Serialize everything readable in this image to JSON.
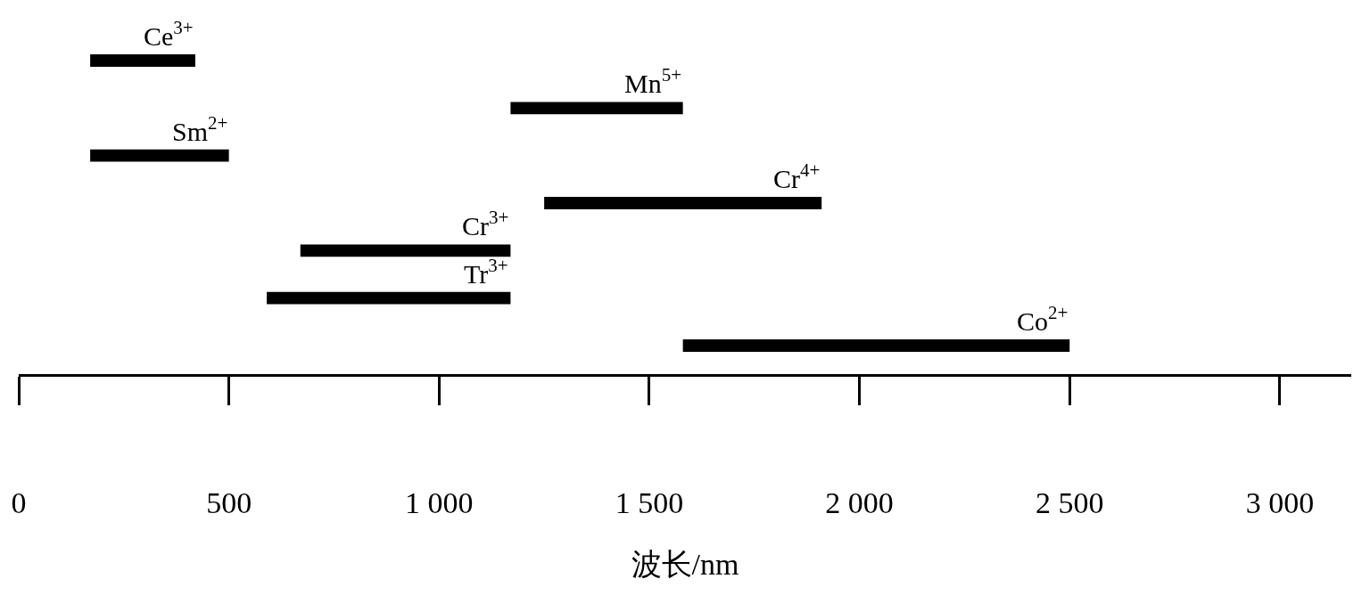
{
  "chart_data": {
    "type": "bar",
    "orientation": "horizontal",
    "xlabel": "波长/nm",
    "categories": [
      null,
      null,
      null,
      null,
      null,
      null,
      null
    ],
    "values": [
      250,
      410,
      330,
      660,
      500,
      580,
      920
    ],
    "base": [
      170,
      1170,
      170,
      1250,
      670,
      590,
      1580
    ],
    "color": "#000000",
    "annotations": [
      "Ce$^{3+}$",
      "Mn$^{5+}$",
      "Sm$^{2+}$",
      "Cr$^{4+}$",
      "Cr$^{3+}$",
      "Tr$^{3+}$",
      "Co$^{2+}$"
    ],
    "xlim": [
      0,
      3170
    ],
    "xticks": [
      0,
      500,
      {
        "value": 1000,
        "label": "1 000"
      },
      {
        "value": 1500,
        "label": "1 500"
      },
      {
        "value": 2000,
        "label": "2 000"
      },
      {
        "value": 2500,
        "label": "2 500"
      },
      {
        "value": 3000,
        "label": "3 000"
      }
    ],
    "tick_labels": "x",
    "grid": false,
    "legend": false
  }
}
